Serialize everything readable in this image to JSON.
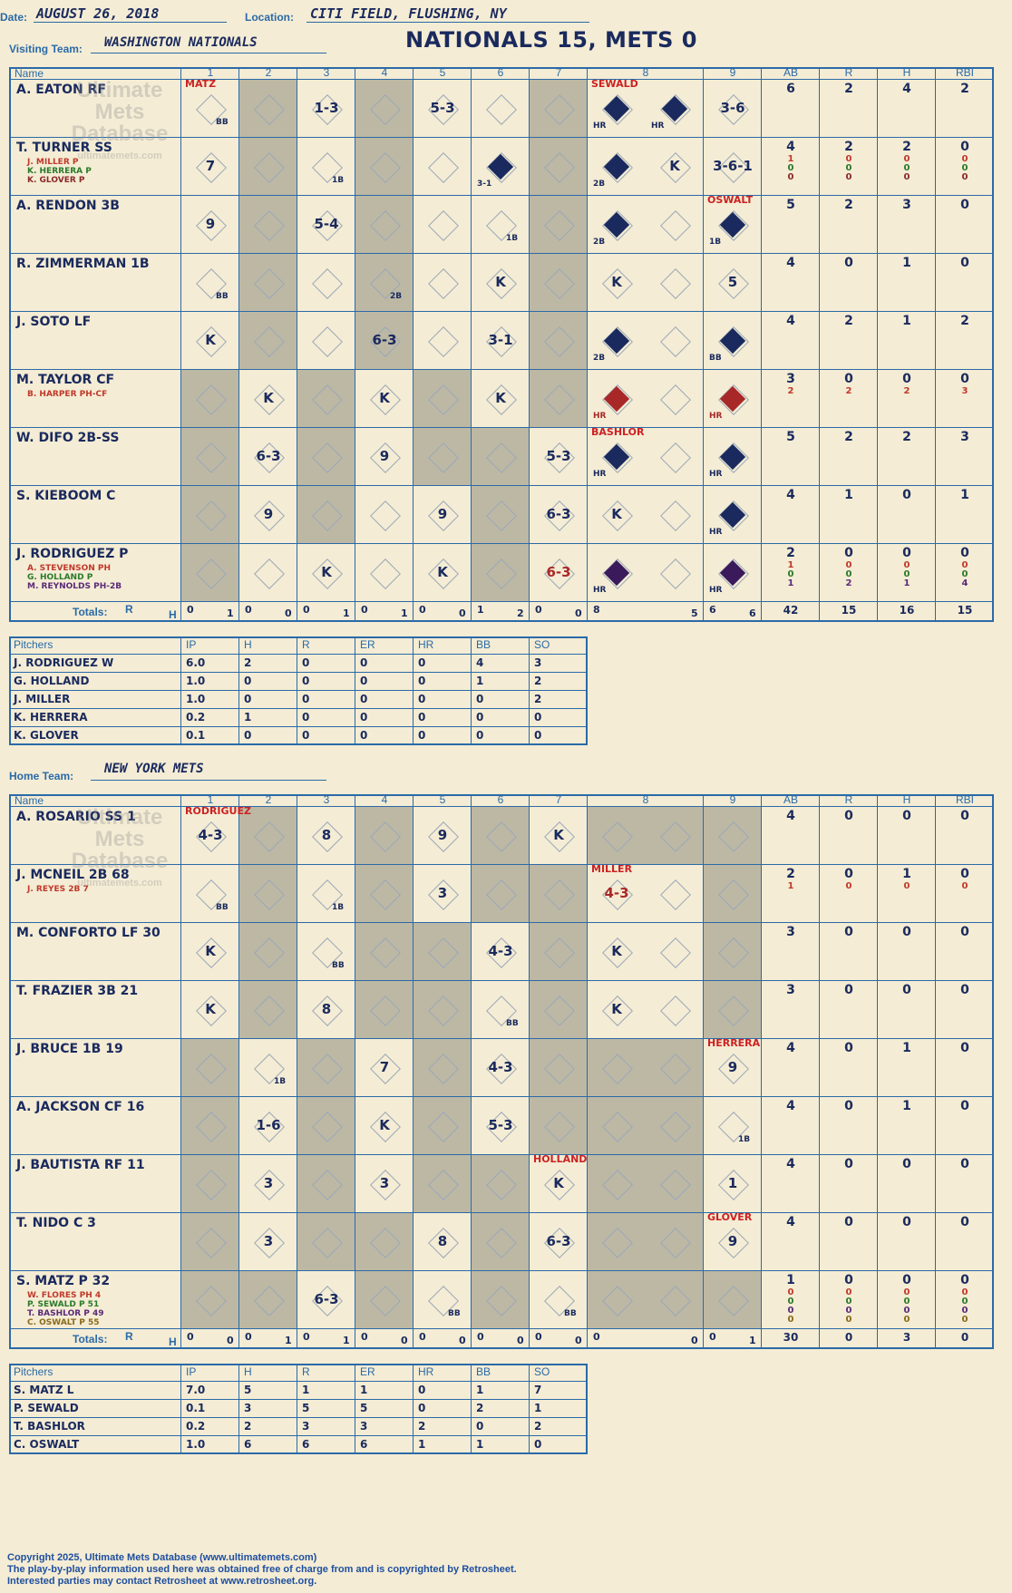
{
  "header": {
    "date_label": "Date:",
    "date": "AUGUST 26, 2018",
    "location_label": "Location:",
    "location": "CITI FIELD, FLUSHING, NY",
    "visiting_label": "Visiting Team:",
    "visiting_team": "WASHINGTON NATIONALS",
    "title": "NATIONALS 15, METS 0",
    "home_label": "Home Team:",
    "home_team": "NEW YORK METS"
  },
  "watermark": [
    "Ultimate",
    "Mets",
    "Database",
    "ultimatemets.com"
  ],
  "columns": {
    "name": "Name",
    "innings": [
      "1",
      "2",
      "3",
      "4",
      "5",
      "6",
      "7",
      "8",
      "9"
    ],
    "stats": [
      "AB",
      "R",
      "H",
      "RBI"
    ],
    "totals": "Totals:",
    "r": "R",
    "h": "H"
  },
  "visitors": {
    "batters": [
      {
        "name": "A. EATON RF",
        "subs": [],
        "stats": [
          [
            "6",
            "2",
            "4",
            "2"
          ]
        ]
      },
      {
        "name": "T. TURNER SS",
        "subs": [
          [
            "J. MILLER P",
            "#c0392b"
          ],
          [
            "K. HERRERA P",
            "#2a7a2a"
          ],
          [
            "K. GLOVER P",
            "#8a2a2a"
          ]
        ],
        "stats": [
          [
            "4",
            "2",
            "2",
            "0"
          ],
          [
            "1",
            "0",
            "0",
            "0"
          ],
          [
            "0",
            "0",
            "0",
            "0"
          ],
          [
            "0",
            "0",
            "0",
            "0"
          ]
        ]
      },
      {
        "name": "A. RENDON 3B",
        "subs": [],
        "stats": [
          [
            "5",
            "2",
            "3",
            "0"
          ]
        ]
      },
      {
        "name": "R. ZIMMERMAN 1B",
        "subs": [],
        "stats": [
          [
            "4",
            "0",
            "1",
            "0"
          ]
        ]
      },
      {
        "name": "J. SOTO LF",
        "subs": [],
        "stats": [
          [
            "4",
            "2",
            "1",
            "2"
          ]
        ]
      },
      {
        "name": "M. TAYLOR CF",
        "subs": [
          [
            "B. HARPER PH-CF",
            "#c0392b"
          ]
        ],
        "stats": [
          [
            "3",
            "0",
            "0",
            "0"
          ],
          [
            "2",
            "2",
            "2",
            "3"
          ]
        ]
      },
      {
        "name": "W. DIFO 2B-SS",
        "subs": [],
        "stats": [
          [
            "5",
            "2",
            "2",
            "3"
          ]
        ]
      },
      {
        "name": "S. KIEBOOM C",
        "subs": [],
        "stats": [
          [
            "4",
            "1",
            "0",
            "1"
          ]
        ]
      },
      {
        "name": "J. RODRIGUEZ P",
        "subs": [
          [
            "A. STEVENSON PH",
            "#c0392b"
          ],
          [
            "G. HOLLAND P",
            "#2a7a2a"
          ],
          [
            "M. REYNOLDS PH-2B",
            "#5a2a7a"
          ]
        ],
        "stats": [
          [
            "2",
            "0",
            "0",
            "0"
          ],
          [
            "1",
            "0",
            "0",
            "0"
          ],
          [
            "0",
            "0",
            "0",
            "0"
          ],
          [
            "1",
            "2",
            "1",
            "4"
          ]
        ]
      }
    ],
    "plays": [
      [
        {
          "i": 0,
          "t": "BB",
          "tag": "MATZ"
        },
        {
          "i": 2,
          "t": "1-3"
        },
        {
          "i": 4,
          "t": "5-3"
        },
        {
          "i": 7,
          "t": "HR",
          "run": "blue",
          "tag": "SEWALD"
        },
        {
          "i": 7,
          "t": "HR",
          "run": "blue",
          "x": true
        },
        {
          "i": 8,
          "t": "3-6"
        }
      ],
      [
        {
          "i": 0,
          "t": "7"
        },
        {
          "i": 2,
          "t": "1B"
        },
        {
          "i": 5,
          "t": "3-1",
          "run": "blue"
        },
        {
          "i": 7,
          "t": "2B",
          "run": "blue"
        },
        {
          "i": 7,
          "t": "K",
          "x": true
        },
        {
          "i": 8,
          "t": "3-6-1"
        }
      ],
      [
        {
          "i": 0,
          "t": "9"
        },
        {
          "i": 2,
          "t": "5-4"
        },
        {
          "i": 5,
          "t": "1B"
        },
        {
          "i": 7,
          "t": "2B",
          "run": "blue"
        },
        {
          "i": 8,
          "t": "1B",
          "run": "blue",
          "tag": "OSWALT"
        }
      ],
      [
        {
          "i": 0,
          "t": "BB"
        },
        {
          "i": 3,
          "t": "2B"
        },
        {
          "i": 5,
          "t": "K"
        },
        {
          "i": 7,
          "t": "K"
        },
        {
          "i": 8,
          "t": "5"
        }
      ],
      [
        {
          "i": 0,
          "t": "K"
        },
        {
          "i": 3,
          "t": "6-3"
        },
        {
          "i": 5,
          "t": "3-1"
        },
        {
          "i": 7,
          "t": "2B",
          "run": "blue"
        },
        {
          "i": 8,
          "t": "BB",
          "run": "blue"
        }
      ],
      [
        {
          "i": 1,
          "t": "K"
        },
        {
          "i": 3,
          "t": "K"
        },
        {
          "i": 5,
          "t": "K"
        },
        {
          "i": 7,
          "t": "HR",
          "run": "red"
        },
        {
          "i": 8,
          "t": "HR",
          "run": "red"
        }
      ],
      [
        {
          "i": 1,
          "t": "6-3"
        },
        {
          "i": 3,
          "t": "9"
        },
        {
          "i": 6,
          "t": "5-3"
        },
        {
          "i": 7,
          "t": "HR",
          "run": "blue",
          "tag": "BASHLOR"
        },
        {
          "i": 8,
          "t": "HR",
          "run": "blue"
        }
      ],
      [
        {
          "i": 1,
          "t": "9"
        },
        {
          "i": 4,
          "t": "9"
        },
        {
          "i": 6,
          "t": "6-3"
        },
        {
          "i": 7,
          "t": "K"
        },
        {
          "i": 8,
          "t": "HR",
          "run": "blue"
        }
      ],
      [
        {
          "i": 2,
          "t": "K"
        },
        {
          "i": 4,
          "t": "K"
        },
        {
          "i": 6,
          "t": "6-3",
          "red": true
        },
        {
          "i": 7,
          "t": "HR",
          "run": "purple"
        },
        {
          "i": 8,
          "t": "HR",
          "run": "purple"
        }
      ]
    ],
    "totals": [
      [
        "0",
        "1"
      ],
      [
        "0",
        "0"
      ],
      [
        "0",
        "1"
      ],
      [
        "0",
        "1"
      ],
      [
        "0",
        "0"
      ],
      [
        "1",
        "2"
      ],
      [
        "0",
        "0"
      ],
      [
        "8",
        "5"
      ],
      [
        "6",
        "6"
      ]
    ],
    "total_stats": [
      "42",
      "15",
      "16",
      "15"
    ],
    "pitchers_label": "Pitchers",
    "pitcher_cols": [
      "IP",
      "H",
      "R",
      "ER",
      "HR",
      "BB",
      "SO"
    ],
    "pitchers": [
      [
        "J. RODRIGUEZ  W",
        "6.0",
        "2",
        "0",
        "0",
        "0",
        "4",
        "3"
      ],
      [
        "G. HOLLAND",
        "1.0",
        "0",
        "0",
        "0",
        "0",
        "1",
        "2"
      ],
      [
        "J. MILLER",
        "1.0",
        "0",
        "0",
        "0",
        "0",
        "0",
        "2"
      ],
      [
        "K. HERRERA",
        "0.2",
        "1",
        "0",
        "0",
        "0",
        "0",
        "0"
      ],
      [
        "K. GLOVER",
        "0.1",
        "0",
        "0",
        "0",
        "0",
        "0",
        "0"
      ]
    ]
  },
  "home": {
    "batters": [
      {
        "name": "A. ROSARIO SS  1",
        "subs": [],
        "stats": [
          [
            "4",
            "0",
            "0",
            "0"
          ]
        ]
      },
      {
        "name": "J. MCNEIL 2B 68",
        "subs": [
          [
            "J. REYES 2B  7",
            "#c0392b"
          ]
        ],
        "stats": [
          [
            "2",
            "0",
            "1",
            "0"
          ],
          [
            "1",
            "0",
            "0",
            "0"
          ]
        ]
      },
      {
        "name": "M. CONFORTO LF  30",
        "subs": [],
        "stats": [
          [
            "3",
            "0",
            "0",
            "0"
          ]
        ]
      },
      {
        "name": "T. FRAZIER 3B  21",
        "subs": [],
        "stats": [
          [
            "3",
            "0",
            "0",
            "0"
          ]
        ]
      },
      {
        "name": "J. BRUCE 1B  19",
        "subs": [],
        "stats": [
          [
            "4",
            "0",
            "1",
            "0"
          ]
        ]
      },
      {
        "name": "A. JACKSON CF  16",
        "subs": [],
        "stats": [
          [
            "4",
            "0",
            "1",
            "0"
          ]
        ]
      },
      {
        "name": "J. BAUTISTA RF  11",
        "subs": [],
        "stats": [
          [
            "4",
            "0",
            "0",
            "0"
          ]
        ]
      },
      {
        "name": "T. NIDO C  3",
        "subs": [],
        "stats": [
          [
            "4",
            "0",
            "0",
            "0"
          ]
        ]
      },
      {
        "name": "S. MATZ P  32",
        "subs": [
          [
            "W. FLORES PH  4",
            "#c0392b"
          ],
          [
            "P. SEWALD P  51",
            "#2a7a2a"
          ],
          [
            "T. BASHLOR P  49",
            "#5a2a7a"
          ],
          [
            "C. OSWALT P  55",
            "#8a6a1a"
          ]
        ],
        "stats": [
          [
            "1",
            "0",
            "0",
            "0"
          ],
          [
            "0",
            "0",
            "0",
            "0"
          ],
          [
            "0",
            "0",
            "0",
            "0"
          ],
          [
            "0",
            "0",
            "0",
            "0"
          ],
          [
            "0",
            "0",
            "0",
            "0"
          ]
        ]
      }
    ],
    "plays": [
      [
        {
          "i": 0,
          "t": "4-3",
          "tag": "RODRIGUEZ"
        },
        {
          "i": 2,
          "t": "8"
        },
        {
          "i": 4,
          "t": "9"
        },
        {
          "i": 6,
          "t": "K"
        }
      ],
      [
        {
          "i": 0,
          "t": "BB"
        },
        {
          "i": 2,
          "t": "1B"
        },
        {
          "i": 4,
          "t": "3"
        },
        {
          "i": 7,
          "t": "4-3",
          "red": true,
          "tag": "MILLER"
        }
      ],
      [
        {
          "i": 0,
          "t": "K"
        },
        {
          "i": 2,
          "t": "BB"
        },
        {
          "i": 5,
          "t": "4-3"
        },
        {
          "i": 7,
          "t": "K"
        }
      ],
      [
        {
          "i": 0,
          "t": "K"
        },
        {
          "i": 2,
          "t": "8"
        },
        {
          "i": 5,
          "t": "BB"
        },
        {
          "i": 7,
          "t": "K"
        }
      ],
      [
        {
          "i": 1,
          "t": "1B"
        },
        {
          "i": 3,
          "t": "7"
        },
        {
          "i": 5,
          "t": "4-3"
        },
        {
          "i": 8,
          "t": "9",
          "tag": "HERRERA"
        }
      ],
      [
        {
          "i": 1,
          "t": "1-6"
        },
        {
          "i": 3,
          "t": "K"
        },
        {
          "i": 5,
          "t": "5-3"
        },
        {
          "i": 8,
          "t": "1B"
        }
      ],
      [
        {
          "i": 1,
          "t": "3"
        },
        {
          "i": 3,
          "t": "3"
        },
        {
          "i": 6,
          "t": "K",
          "tag": "HOLLAND"
        },
        {
          "i": 8,
          "t": "1"
        }
      ],
      [
        {
          "i": 1,
          "t": "3"
        },
        {
          "i": 4,
          "t": "8"
        },
        {
          "i": 6,
          "t": "6-3"
        },
        {
          "i": 8,
          "t": "9",
          "tag": "GLOVER"
        }
      ],
      [
        {
          "i": 2,
          "t": "6-3"
        },
        {
          "i": 4,
          "t": "BB"
        },
        {
          "i": 6,
          "t": "BB"
        }
      ]
    ],
    "totals": [
      [
        "0",
        "0"
      ],
      [
        "0",
        "1"
      ],
      [
        "0",
        "1"
      ],
      [
        "0",
        "0"
      ],
      [
        "0",
        "0"
      ],
      [
        "0",
        "0"
      ],
      [
        "0",
        "0"
      ],
      [
        "0",
        "0"
      ],
      [
        "0",
        "1"
      ]
    ],
    "total_stats": [
      "30",
      "0",
      "3",
      "0"
    ],
    "pitchers_label": "Pitchers",
    "pitcher_cols": [
      "IP",
      "H",
      "R",
      "ER",
      "HR",
      "BB",
      "SO"
    ],
    "pitchers": [
      [
        "S. MATZ  L",
        "7.0",
        "5",
        "1",
        "1",
        "0",
        "1",
        "7"
      ],
      [
        "P. SEWALD",
        "0.1",
        "3",
        "5",
        "5",
        "0",
        "2",
        "1"
      ],
      [
        "T. BASHLOR",
        "0.2",
        "2",
        "3",
        "3",
        "2",
        "0",
        "2"
      ],
      [
        "C. OSWALT",
        "1.0",
        "6",
        "6",
        "6",
        "1",
        "1",
        "0"
      ]
    ]
  },
  "footer": [
    "Copyright 2025, Ultimate Mets Database (www.ultimatemets.com)",
    "The play-by-play information used here was obtained free of charge from and is copyrighted by Retrosheet.",
    "Interested parties may contact Retrosheet at www.retrosheet.org."
  ],
  "colors": {
    "grid": "#2a6aa8",
    "ink": "#1a2a5e",
    "paper": "#f4ecd4",
    "shade": "#bdb8a4",
    "red": "#cc2222"
  }
}
